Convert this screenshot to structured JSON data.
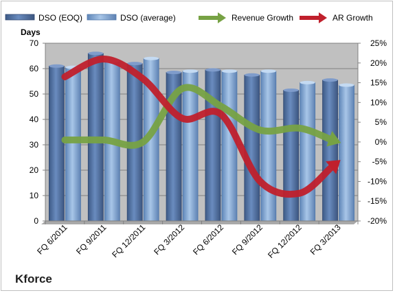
{
  "chart_data": {
    "type": "bar",
    "ylabel": "Days",
    "company": "Kforce",
    "categories": [
      "FQ 6/2011",
      "FQ 9/2011",
      "FQ 12/2011",
      "FQ 3/2012",
      "FQ 6/2012",
      "FQ 9/2012",
      "FQ 12/2012",
      "FQ 3/2013"
    ],
    "ylim": [
      0,
      70
    ],
    "yticks": [
      0,
      10,
      20,
      30,
      40,
      50,
      60,
      70
    ],
    "y2lim": [
      -20,
      25
    ],
    "y2ticks": [
      "-20%",
      "-15%",
      "-10%",
      "-5%",
      "0%",
      "5%",
      "10%",
      "15%",
      "20%",
      "25%"
    ],
    "y2values": [
      -20,
      -15,
      -10,
      -5,
      0,
      5,
      10,
      15,
      20,
      25
    ],
    "plot_background": "#c0c0c0",
    "grid": true,
    "legend_position": "top",
    "series": [
      {
        "name": "DSO (EOQ)",
        "kind": "bar",
        "color": "#4f6e9f",
        "values": [
          61,
          66,
          62,
          58.5,
          59.5,
          57.5,
          51.5,
          55.5
        ]
      },
      {
        "name": "DSO (average)",
        "kind": "bar",
        "color": "#7ea4d2",
        "values": [
          60.5,
          63,
          64,
          59,
          59,
          59,
          54.5,
          53.5
        ]
      },
      {
        "name": "Revenue Growth",
        "kind": "arrow",
        "axis": "right",
        "color": "#77a244",
        "values": [
          0.5,
          0.5,
          0,
          13.5,
          9,
          3,
          3.5,
          0
        ]
      },
      {
        "name": "AR Growth",
        "kind": "arrow",
        "axis": "right",
        "color": "#c0202c",
        "values": [
          16.5,
          21,
          16,
          6,
          7,
          -10,
          -13,
          -5
        ]
      }
    ]
  }
}
